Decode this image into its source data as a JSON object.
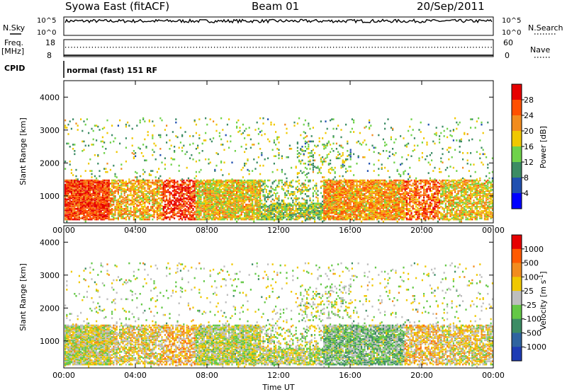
{
  "header": {
    "station": "Syowa East (fitACF)",
    "beam": "Beam 01",
    "date": "20/Sep/2011"
  },
  "status_panels": {
    "nsky_label": "N.Sky",
    "nsearch_label": "N.Search",
    "freq_label": "Freq.",
    "freq_unit": "[MHz]",
    "nave_label": "Nave",
    "cpid_label": "CPID",
    "cpid_text": "normal (fast) 151 RF",
    "noise_ticks": [
      "10^5",
      "10^0"
    ],
    "noise_ticks_right": [
      "10^5",
      "10^0"
    ],
    "freq_ticks": [
      "18",
      "8"
    ],
    "nave_ticks": [
      "60",
      "0"
    ],
    "noise_level": 0.78,
    "freq_level": 0.55,
    "freq_baseline": 0.08
  },
  "chart_data": [
    {
      "type": "heatmap",
      "panel": "power",
      "ylabel": "Slant Range [km]",
      "ylim": [
        180,
        4500
      ],
      "y_ticks": [
        "4000",
        "3000",
        "2000",
        "1000"
      ],
      "y_tick_values": [
        4000,
        3000,
        2000,
        1000
      ],
      "x_ticks": [
        "00:00",
        "04:00",
        "08:00",
        "12:00",
        "16:00",
        "20:00",
        "00:00"
      ],
      "x_tick_hours": [
        0,
        4,
        8,
        12,
        16,
        20,
        24
      ],
      "xlim_hours": [
        0,
        24
      ],
      "colorbar_label": "Power [dB]",
      "colorbar_ticks": [
        "28",
        "24",
        "20",
        "16",
        "12",
        "8",
        "4"
      ],
      "colorbar_range": [
        0,
        32
      ],
      "colors": [
        "#0000ff",
        "#2050b0",
        "#3c8c64",
        "#6fd24a",
        "#f0c800",
        "#f28c1e",
        "#ff5000",
        "#e60000"
      ]
    },
    {
      "type": "heatmap",
      "panel": "velocity",
      "ylabel": "Slant Range [km]",
      "ylim": [
        180,
        4500
      ],
      "y_ticks": [
        "4000",
        "3000",
        "2000",
        "1000"
      ],
      "y_tick_values": [
        4000,
        3000,
        2000,
        1000
      ],
      "x_ticks": [
        "00:00",
        "04:00",
        "08:00",
        "12:00",
        "16:00",
        "20:00",
        "00:00"
      ],
      "x_tick_hours": [
        0,
        4,
        8,
        12,
        16,
        20,
        24
      ],
      "xlim_hours": [
        0,
        24
      ],
      "xlabel": "Time UT",
      "colorbar_label": "Velocity [m s",
      "colorbar_label_sup": "-1",
      "colorbar_label_end": "]",
      "colorbar_ticks": [
        "1000",
        "500",
        "100",
        "25",
        "-25",
        "-100",
        "-500",
        "-1000"
      ],
      "colors": [
        "#1e3cb4",
        "#2f64a0",
        "#3c8c64",
        "#64c846",
        "#bebebe",
        "#f0c800",
        "#f28c1e",
        "#ff5a00",
        "#e60000"
      ]
    }
  ]
}
